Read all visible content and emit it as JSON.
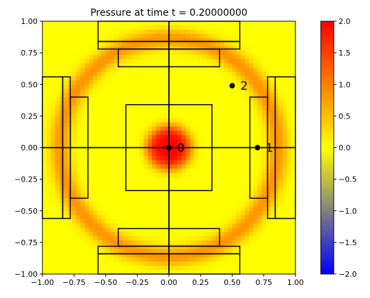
{
  "chart_data": {
    "type": "heatmap",
    "title": "Pressure at time t =      0.20000000",
    "xlim": [
      -1.0,
      1.0
    ],
    "ylim": [
      -1.0,
      1.0
    ],
    "x_ticks": [
      "−1.00",
      "−0.75",
      "−0.50",
      "−0.25",
      "0.00",
      "0.25",
      "0.50",
      "0.75",
      "1.00"
    ],
    "y_ticks": [
      "−1.00",
      "−0.75",
      "−0.50",
      "−0.25",
      "0.00",
      "0.25",
      "0.50",
      "0.75",
      "1.00"
    ],
    "x_tick_values": [
      -1.0,
      -0.75,
      -0.5,
      -0.25,
      0.0,
      0.25,
      0.5,
      0.75,
      1.0
    ],
    "y_tick_values": [
      -1.0,
      -0.75,
      -0.5,
      -0.25,
      0.0,
      0.25,
      0.5,
      0.75,
      1.0
    ],
    "colorbar": {
      "range": [
        -2.0,
        2.0
      ],
      "tick_values": [
        2.0,
        1.5,
        1.0,
        0.5,
        0.0,
        -0.5,
        -1.0,
        -1.5,
        -2.0
      ],
      "tick_labels": [
        "2.0",
        "1.5",
        "1.0",
        "0.5",
        "0.0",
        "−0.5",
        "−1.0",
        "−1.5",
        "−2.0"
      ],
      "colormap": [
        "#0000ff",
        "#808080",
        "#ffff00",
        "#ff0000"
      ]
    },
    "field": {
      "background": 0.0,
      "center_pulse": {
        "x": 0.0,
        "y": 0.0,
        "peak": 2.0,
        "radius": 0.18
      },
      "ring": {
        "radius": 0.86,
        "peak": 0.85,
        "width": 0.08
      }
    },
    "probes": [
      {
        "label": "0",
        "x": 0.0,
        "y": 0.0
      },
      {
        "label": "1",
        "x": 0.7,
        "y": 0.0
      },
      {
        "label": "2",
        "x": 0.5,
        "y": 0.49
      }
    ],
    "lines": [
      {
        "x1": -1.0,
        "y1": 0.0,
        "x2": 1.0,
        "y2": 0.0
      },
      {
        "x1": 0.0,
        "y1": -1.0,
        "x2": 0.0,
        "y2": 1.0
      }
    ],
    "rectangles": [
      {
        "x0": -0.56,
        "y0": 0.84,
        "x1": 0.56,
        "y1": 1.0
      },
      {
        "x0": -0.56,
        "y0": 0.78,
        "x1": 0.56,
        "y1": 0.84
      },
      {
        "x0": -0.4,
        "y0": 0.64,
        "x1": 0.4,
        "y1": 0.78
      },
      {
        "x0": -0.56,
        "y0": -1.0,
        "x1": 0.56,
        "y1": -0.84
      },
      {
        "x0": -0.56,
        "y0": -0.84,
        "x1": 0.56,
        "y1": -0.78
      },
      {
        "x0": -0.4,
        "y0": -0.78,
        "x1": 0.4,
        "y1": -0.64
      },
      {
        "x0": -1.0,
        "y0": -0.56,
        "x1": -0.84,
        "y1": 0.56
      },
      {
        "x0": -0.84,
        "y0": -0.56,
        "x1": -0.78,
        "y1": 0.56
      },
      {
        "x0": -0.78,
        "y0": -0.4,
        "x1": -0.64,
        "y1": 0.4
      },
      {
        "x0": 0.84,
        "y0": -0.56,
        "x1": 1.0,
        "y1": 0.56
      },
      {
        "x0": 0.78,
        "y0": -0.56,
        "x1": 0.84,
        "y1": 0.56
      },
      {
        "x0": 0.64,
        "y0": -0.4,
        "x1": 0.78,
        "y1": 0.4
      },
      {
        "x0": -0.34,
        "y0": -0.34,
        "x1": 0.34,
        "y1": 0.34
      }
    ]
  }
}
